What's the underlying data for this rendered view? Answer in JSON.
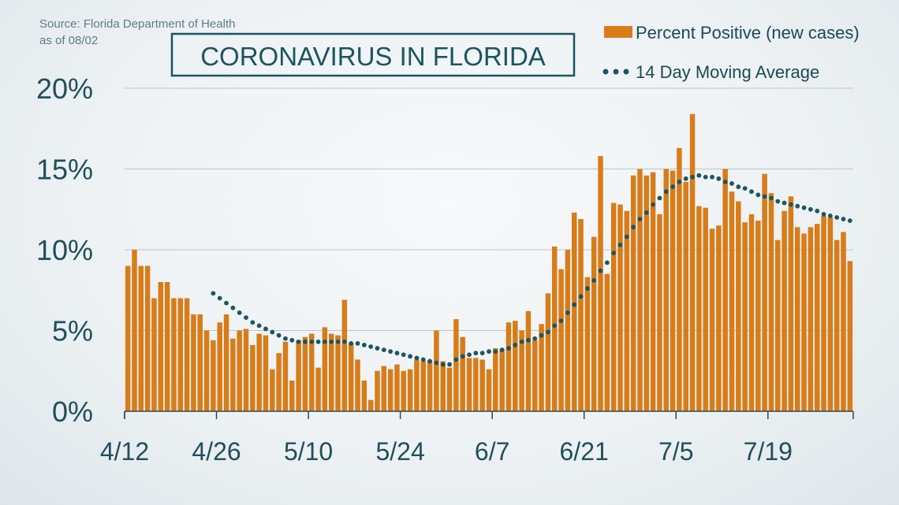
{
  "source": {
    "line1": "Source: Florida Department of Health",
    "line2": "as of 08/02"
  },
  "colors": {
    "bar": "#d87c19",
    "average": "#1d5563",
    "accent": "#1a5560"
  },
  "chart_data": {
    "type": "bar",
    "title": "CORONAVIRUS IN FLORIDA",
    "xlabel": "",
    "ylabel": "",
    "ylim": [
      0,
      20
    ],
    "y_ticks": [
      "0%",
      "5%",
      "10%",
      "15%",
      "20%"
    ],
    "y_tick_values": [
      0,
      5,
      10,
      15,
      20
    ],
    "x_tick_labels": [
      "4/12",
      "4/26",
      "5/10",
      "5/24",
      "6/7",
      "6/21",
      "7/5",
      "7/19"
    ],
    "x_tick_day_index": [
      0,
      14,
      28,
      42,
      56,
      70,
      84,
      98
    ],
    "grid": true,
    "legend_position": "top-right",
    "series": [
      {
        "name": "Percent Positive (new cases)",
        "type": "bar",
        "values": [
          9.0,
          10.0,
          9.0,
          9.0,
          7.0,
          8.0,
          8.0,
          7.0,
          7.0,
          7.0,
          6.0,
          6.0,
          5.0,
          4.4,
          5.5,
          6.0,
          4.5,
          5.0,
          5.1,
          4.1,
          4.8,
          4.7,
          2.6,
          3.6,
          4.3,
          1.9,
          4.4,
          4.6,
          4.8,
          2.7,
          5.2,
          4.8,
          4.7,
          6.9,
          4.2,
          3.2,
          1.9,
          0.7,
          2.5,
          2.8,
          2.6,
          2.9,
          2.5,
          2.6,
          3.2,
          3.1,
          3.1,
          5.0,
          3.1,
          2.7,
          5.7,
          4.6,
          3.3,
          3.3,
          3.2,
          2.6,
          3.9,
          3.8,
          5.5,
          5.6,
          5.0,
          6.2,
          4.4,
          5.4,
          7.3,
          10.2,
          8.8,
          10.0,
          12.3,
          11.9,
          8.3,
          10.8,
          15.8,
          8.5,
          12.9,
          12.8,
          12.4,
          14.6,
          15.0,
          14.6,
          14.8,
          12.2,
          15.0,
          14.9,
          16.3,
          14.2,
          18.4,
          12.7,
          12.6,
          11.3,
          11.5,
          15.0,
          13.6,
          13.0,
          11.7,
          12.2,
          11.8,
          14.7,
          13.5,
          10.6,
          12.4,
          13.3,
          11.4,
          11.0,
          11.4,
          11.6,
          12.1,
          12.0,
          10.6,
          11.1,
          9.3
        ]
      },
      {
        "name": "14 Day Moving Average",
        "type": "line",
        "start_day_index": 13,
        "values": [
          7.3,
          7.0,
          6.7,
          6.4,
          6.1,
          5.8,
          5.5,
          5.3,
          5.1,
          4.9,
          4.7,
          4.5,
          4.4,
          4.3,
          4.3,
          4.3,
          4.3,
          4.3,
          4.3,
          4.3,
          4.3,
          4.2,
          4.2,
          4.1,
          4.0,
          3.9,
          3.8,
          3.7,
          3.6,
          3.5,
          3.4,
          3.3,
          3.2,
          3.1,
          3.0,
          2.9,
          2.9,
          3.2,
          3.4,
          3.5,
          3.6,
          3.6,
          3.7,
          3.7,
          3.8,
          3.9,
          4.1,
          4.3,
          4.4,
          4.5,
          4.7,
          4.9,
          5.3,
          5.6,
          6.1,
          6.6,
          7.1,
          7.6,
          8.1,
          8.7,
          9.2,
          9.8,
          10.3,
          10.8,
          11.4,
          11.9,
          12.3,
          12.8,
          13.2,
          13.6,
          13.9,
          14.2,
          14.4,
          14.5,
          14.6,
          14.5,
          14.5,
          14.4,
          14.2,
          14.1,
          13.9,
          13.8,
          13.6,
          13.4,
          13.3,
          13.2,
          13.0,
          12.9,
          12.8,
          12.7,
          12.6,
          12.5,
          12.4,
          12.2,
          12.1,
          12.0,
          11.9,
          11.8
        ]
      }
    ]
  }
}
